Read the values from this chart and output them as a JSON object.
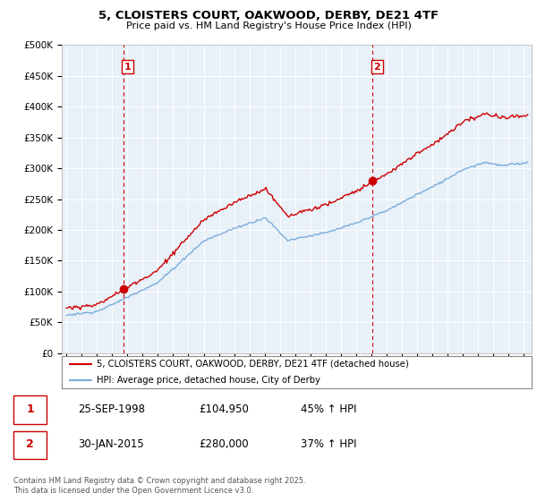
{
  "title_line1": "5, CLOISTERS COURT, OAKWOOD, DERBY, DE21 4TF",
  "title_line2": "Price paid vs. HM Land Registry's House Price Index (HPI)",
  "legend_label1": "5, CLOISTERS COURT, OAKWOOD, DERBY, DE21 4TF (detached house)",
  "legend_label2": "HPI: Average price, detached house, City of Derby",
  "annotation1_date": "25-SEP-1998",
  "annotation1_price": "£104,950",
  "annotation1_hpi": "45% ↑ HPI",
  "annotation2_date": "30-JAN-2015",
  "annotation2_price": "£280,000",
  "annotation2_hpi": "37% ↑ HPI",
  "footer": "Contains HM Land Registry data © Crown copyright and database right 2025.\nThis data is licensed under the Open Government Licence v3.0.",
  "red_color": "#cc0000",
  "blue_color": "#7aaddb",
  "chart_bg": "#e8f0f8",
  "grid_color": "#ffffff",
  "ylim": [
    0,
    500000
  ],
  "yticks": [
    0,
    50000,
    100000,
    150000,
    200000,
    250000,
    300000,
    350000,
    400000,
    450000,
    500000
  ],
  "xlim_start": 1994.7,
  "xlim_end": 2025.5,
  "sale1_x": 1998.73,
  "sale1_y": 104950,
  "sale2_x": 2015.08,
  "sale2_y": 280000,
  "vline1_x": 1998.73,
  "vline2_x": 2015.08
}
